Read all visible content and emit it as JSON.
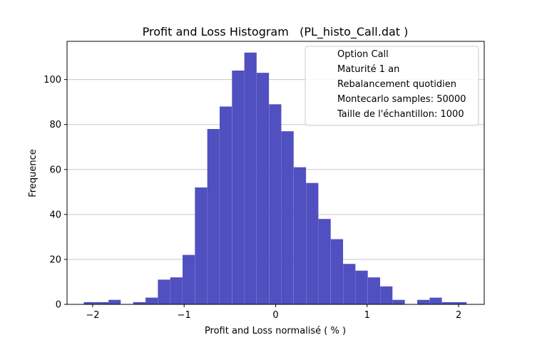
{
  "chart_data": {
    "type": "bar",
    "title": "Profit and Loss Histogram   (PL_histo_Call.dat )",
    "xlabel": "Profit and Loss normalisé ( % )",
    "ylabel": "Frequence",
    "xlim": [
      -2.28,
      2.28
    ],
    "ylim": [
      0,
      117
    ],
    "xticks": [
      -2,
      -1,
      0,
      1,
      2
    ],
    "xtick_labels": [
      "−2",
      "−1",
      "0",
      "1",
      "2"
    ],
    "yticks": [
      0,
      20,
      40,
      60,
      80,
      100
    ],
    "ytick_labels": [
      "0",
      "20",
      "40",
      "60",
      "80",
      "100"
    ],
    "grid": "horizontal",
    "bar_color": "#5050c0",
    "bin_width": 0.134,
    "x": [
      -2.03,
      -1.895,
      -1.76,
      -1.625,
      -1.49,
      -1.355,
      -1.22,
      -1.085,
      -0.95,
      -0.815,
      -0.68,
      -0.545,
      -0.41,
      -0.275,
      -0.14,
      -0.005,
      0.13,
      0.265,
      0.4,
      0.535,
      0.67,
      0.805,
      0.94,
      1.075,
      1.21,
      1.345,
      1.48,
      1.615,
      1.75,
      1.885,
      2.02
    ],
    "values": [
      1,
      1,
      2,
      0,
      1,
      3,
      11,
      12,
      22,
      52,
      78,
      88,
      104,
      112,
      103,
      89,
      77,
      61,
      54,
      38,
      29,
      18,
      15,
      12,
      8,
      2,
      0,
      2,
      3,
      1,
      1
    ],
    "legend": {
      "position": "top-right",
      "entries": [
        "Option Call",
        "Maturité 1 an",
        "Rebalancement quotidien",
        "Montecarlo samples: 50000",
        "Taille de l'échantillon: 1000"
      ]
    }
  }
}
